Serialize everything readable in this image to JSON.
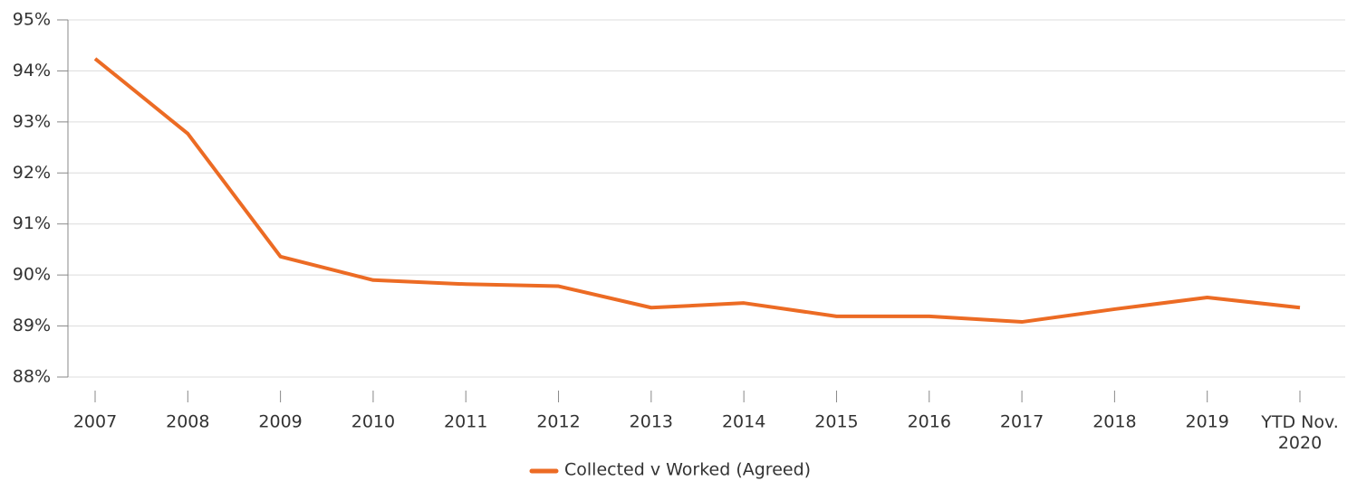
{
  "chart_data": {
    "type": "line",
    "categories": [
      "2007",
      "2008",
      "2009",
      "2010",
      "2011",
      "2012",
      "2013",
      "2014",
      "2015",
      "2016",
      "2017",
      "2018",
      "2019",
      "YTD Nov.\n2020"
    ],
    "series": [
      {
        "name": "Collected v Worked (Agreed)",
        "color": "#ec6b24",
        "values": [
          94.24,
          92.77,
          90.36,
          89.9,
          89.82,
          89.78,
          89.36,
          89.45,
          89.19,
          89.19,
          89.08,
          89.33,
          89.56,
          89.36
        ]
      }
    ],
    "ylim": [
      88,
      95
    ],
    "yticks": [
      {
        "value": 88,
        "label": "88%"
      },
      {
        "value": 89,
        "label": "89%"
      },
      {
        "value": 90,
        "label": "90%"
      },
      {
        "value": 91,
        "label": "91%"
      },
      {
        "value": 92,
        "label": "92%"
      },
      {
        "value": 93,
        "label": "93%"
      },
      {
        "value": 94,
        "label": "94%"
      },
      {
        "value": 95,
        "label": "95%"
      }
    ],
    "grid": true,
    "legend": "bottom"
  }
}
